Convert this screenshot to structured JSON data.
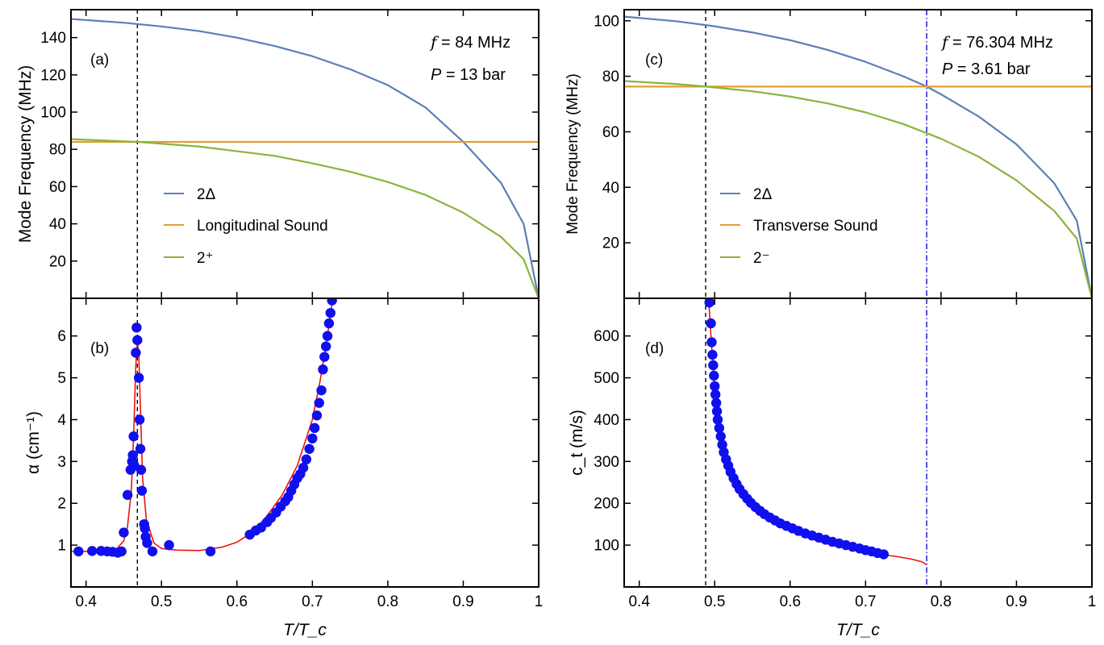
{
  "figure": {
    "left_xlabel": "T/T_c",
    "right_xlabel": "T/T_c"
  },
  "chart_data": [
    {
      "panel": "(a)",
      "type": "line",
      "ylabel": "Mode Frequency (MHz)",
      "xlim": [
        0.38,
        1.0
      ],
      "ylim": [
        0,
        155
      ],
      "xticks": [
        0.4,
        0.5,
        0.6,
        0.7,
        0.8,
        0.9,
        1
      ],
      "xtick_labels": [
        "0.4",
        "0.5",
        "0.6",
        "0.7",
        "0.8",
        "0.9",
        "1"
      ],
      "yticks": [
        20,
        40,
        60,
        80,
        100,
        120,
        140
      ],
      "annotation": {
        "f": "84 MHz",
        "P": "13 bar"
      },
      "vline": 0.468,
      "legend": [
        "2Δ",
        "Longitudinal Sound",
        "2⁺"
      ],
      "series": [
        {
          "name": "2Δ",
          "color": "#5c7fb5",
          "x": [
            0.38,
            0.45,
            0.5,
            0.55,
            0.6,
            0.65,
            0.7,
            0.75,
            0.8,
            0.85,
            0.9,
            0.95,
            0.98,
            1.0
          ],
          "y": [
            150.0,
            148.0,
            146.0,
            143.5,
            140.0,
            135.5,
            130.0,
            123.0,
            114.5,
            102.5,
            84.0,
            62.0,
            40.0,
            0
          ]
        },
        {
          "name": "Longitudinal Sound",
          "color": "#e0a030",
          "x": [
            0.38,
            1.0
          ],
          "y": [
            84.0,
            84.0
          ]
        },
        {
          "name": "2⁺",
          "color": "#8bb33c",
          "x": [
            0.38,
            0.468,
            0.55,
            0.6,
            0.65,
            0.7,
            0.75,
            0.8,
            0.85,
            0.9,
            0.95,
            0.98,
            1.0
          ],
          "y": [
            85.5,
            84.0,
            81.5,
            79.0,
            76.5,
            72.5,
            68.0,
            62.5,
            55.5,
            46.0,
            33.0,
            21.0,
            0
          ]
        }
      ]
    },
    {
      "panel": "(b)",
      "type": "scatter",
      "ylabel": "α (cm⁻¹)",
      "xlim": [
        0.38,
        1.0
      ],
      "ylim": [
        0,
        6.9
      ],
      "xticks": [
        0.4,
        0.5,
        0.6,
        0.7,
        0.8,
        0.9,
        1
      ],
      "xtick_labels": [
        "0.4",
        "0.5",
        "0.6",
        "0.7",
        "0.8",
        "0.9",
        "1"
      ],
      "yticks": [
        1,
        2,
        3,
        4,
        5,
        6
      ],
      "vline": 0.468,
      "fit": {
        "color": "#ee1111",
        "x": [
          0.38,
          0.42,
          0.44,
          0.45,
          0.455,
          0.46,
          0.463,
          0.466,
          0.468,
          0.47,
          0.472,
          0.475,
          0.48,
          0.49,
          0.5,
          0.52,
          0.55,
          0.58,
          0.6,
          0.62,
          0.64,
          0.66,
          0.68,
          0.7,
          0.71,
          0.72,
          0.727
        ],
        "y": [
          0.85,
          0.85,
          0.9,
          1.1,
          1.45,
          2.3,
          3.6,
          5.3,
          5.9,
          5.5,
          4.3,
          2.6,
          1.6,
          1.05,
          0.92,
          0.88,
          0.87,
          0.95,
          1.07,
          1.3,
          1.7,
          2.2,
          2.9,
          4.0,
          4.9,
          6.0,
          6.9
        ]
      },
      "points": {
        "color": "#1010ee",
        "x": [
          0.39,
          0.408,
          0.42,
          0.428,
          0.435,
          0.442,
          0.447,
          0.45,
          0.455,
          0.459,
          0.461,
          0.462,
          0.463,
          0.464,
          0.466,
          0.467,
          0.468,
          0.47,
          0.471,
          0.472,
          0.473,
          0.474,
          0.477,
          0.478,
          0.479,
          0.481,
          0.488,
          0.51,
          0.565,
          0.617,
          0.625,
          0.632,
          0.64,
          0.645,
          0.652,
          0.658,
          0.664,
          0.668,
          0.672,
          0.676,
          0.68,
          0.684,
          0.688,
          0.692,
          0.696,
          0.7,
          0.703,
          0.706,
          0.709,
          0.712,
          0.714,
          0.716,
          0.718,
          0.72,
          0.722,
          0.724,
          0.726
        ],
        "y": [
          0.85,
          0.86,
          0.86,
          0.85,
          0.84,
          0.82,
          0.85,
          1.3,
          2.2,
          2.8,
          3.0,
          3.15,
          3.6,
          2.9,
          5.6,
          6.2,
          5.9,
          5.0,
          4.0,
          3.3,
          2.8,
          2.3,
          1.5,
          1.4,
          1.2,
          1.05,
          0.85,
          1.0,
          0.85,
          1.25,
          1.35,
          1.42,
          1.55,
          1.65,
          1.78,
          1.92,
          2.05,
          2.15,
          2.3,
          2.45,
          2.6,
          2.7,
          2.85,
          3.05,
          3.3,
          3.55,
          3.8,
          4.1,
          4.4,
          4.7,
          5.2,
          5.5,
          5.75,
          6.0,
          6.3,
          6.55,
          6.85
        ]
      }
    },
    {
      "panel": "(c)",
      "type": "line",
      "ylabel": "Mode Frequency (MHz)",
      "xlim": [
        0.38,
        1.0
      ],
      "ylim": [
        0,
        104
      ],
      "xticks": [
        0.4,
        0.5,
        0.6,
        0.7,
        0.8,
        0.9,
        1
      ],
      "xtick_labels": [
        "0.4",
        "0.5",
        "0.6",
        "0.7",
        "0.8",
        "0.9",
        "1"
      ],
      "yticks": [
        20,
        40,
        60,
        80,
        100
      ],
      "annotation": {
        "f": "76.304 MHz",
        "P": "3.61 bar"
      },
      "vline": 0.488,
      "vline_dashdot": 0.781,
      "legend": [
        "2Δ",
        "Transverse Sound",
        "2⁻"
      ],
      "series": [
        {
          "name": "2Δ",
          "color": "#5c7fb5",
          "x": [
            0.38,
            0.45,
            0.5,
            0.55,
            0.6,
            0.65,
            0.7,
            0.75,
            0.781,
            0.8,
            0.85,
            0.9,
            0.95,
            0.98,
            1.0
          ],
          "y": [
            101.5,
            99.8,
            98.0,
            95.8,
            93.0,
            89.5,
            85.2,
            80.0,
            76.3,
            73.5,
            65.5,
            55.5,
            41.5,
            28.0,
            0
          ]
        },
        {
          "name": "Transverse Sound",
          "color": "#e0a030",
          "x": [
            0.38,
            1.0
          ],
          "y": [
            76.3,
            76.3
          ]
        },
        {
          "name": "2⁻",
          "color": "#8bb33c",
          "x": [
            0.38,
            0.45,
            0.488,
            0.55,
            0.6,
            0.65,
            0.7,
            0.75,
            0.781,
            0.8,
            0.85,
            0.9,
            0.95,
            0.98,
            1.0
          ],
          "y": [
            78.3,
            77.2,
            76.3,
            74.6,
            72.7,
            70.2,
            67.0,
            62.8,
            59.5,
            57.5,
            51.0,
            42.5,
            31.5,
            21.5,
            0
          ]
        }
      ]
    },
    {
      "panel": "(d)",
      "type": "scatter",
      "ylabel": "c_t (m/s)",
      "xlim": [
        0.38,
        1.0
      ],
      "ylim": [
        0,
        690
      ],
      "xticks": [
        0.4,
        0.5,
        0.6,
        0.7,
        0.8,
        0.9,
        1
      ],
      "xtick_labels": [
        "0.4",
        "0.5",
        "0.6",
        "0.7",
        "0.8",
        "0.9",
        "1"
      ],
      "yticks": [
        100,
        200,
        300,
        400,
        500,
        600
      ],
      "vline": 0.488,
      "vline_dashdot": 0.781,
      "fit": {
        "color": "#ee1111",
        "x": [
          0.492,
          0.495,
          0.5,
          0.505,
          0.51,
          0.52,
          0.53,
          0.54,
          0.55,
          0.56,
          0.58,
          0.6,
          0.62,
          0.64,
          0.66,
          0.68,
          0.7,
          0.72,
          0.74,
          0.76,
          0.775,
          0.781
        ],
        "y": [
          690,
          600,
          470,
          400,
          350,
          290,
          250,
          220,
          196,
          178,
          153,
          135,
          120,
          108,
          98,
          90,
          84,
          78,
          73,
          67,
          60,
          53
        ]
      },
      "points": {
        "color": "#1010ee",
        "x": [
          0.493,
          0.495,
          0.496,
          0.497,
          0.498,
          0.499,
          0.5,
          0.501,
          0.502,
          0.503,
          0.504,
          0.506,
          0.508,
          0.51,
          0.512,
          0.515,
          0.518,
          0.521,
          0.525,
          0.529,
          0.533,
          0.538,
          0.543,
          0.548,
          0.554,
          0.56,
          0.566,
          0.573,
          0.58,
          0.587,
          0.595,
          0.603,
          0.611,
          0.62,
          0.629,
          0.638,
          0.647,
          0.656,
          0.665,
          0.674,
          0.683,
          0.692,
          0.7,
          0.708,
          0.716,
          0.724
        ],
        "y": [
          680,
          630,
          585,
          555,
          530,
          505,
          480,
          460,
          440,
          420,
          400,
          380,
          360,
          340,
          322,
          305,
          290,
          275,
          260,
          246,
          234,
          222,
          211,
          201,
          191,
          182,
          174,
          166,
          159,
          152,
          146,
          140,
          134,
          128,
          123,
          118,
          113,
          108,
          104,
          100,
          96,
          92,
          88,
          85,
          81,
          78
        ]
      }
    }
  ]
}
